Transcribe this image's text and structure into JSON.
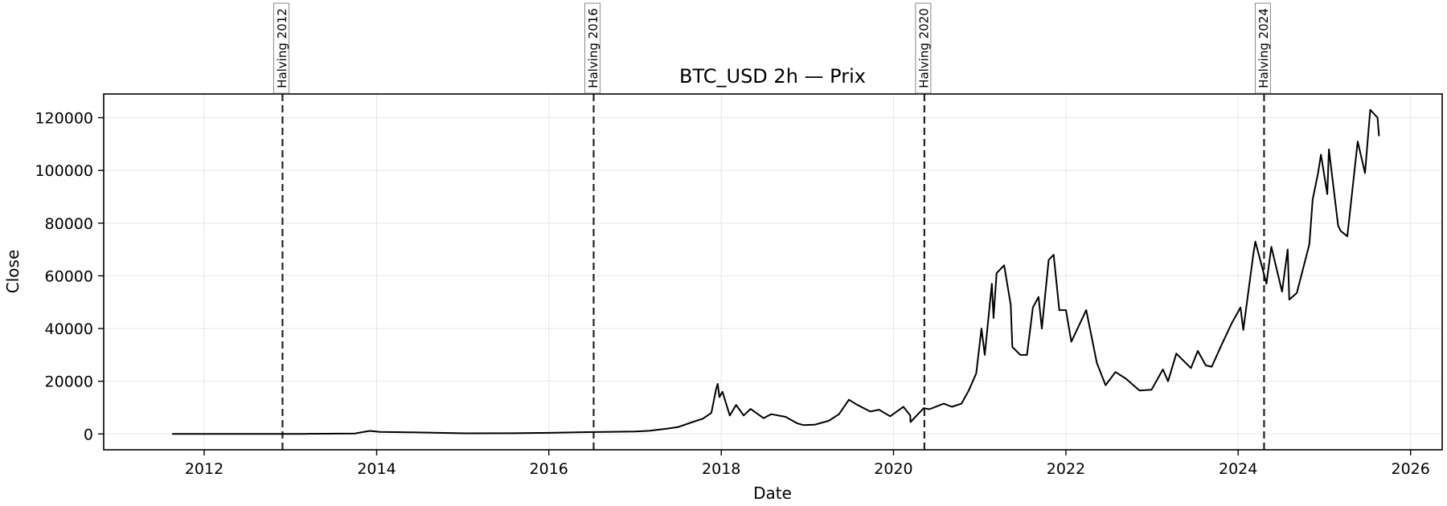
{
  "chart_data": {
    "type": "line",
    "title": "BTC_USD 2h — Prix",
    "xlabel": "Date",
    "ylabel": "Close",
    "xlim": [
      "2010-11-01",
      "2026-05-15"
    ],
    "ylim": [
      -6000,
      129000
    ],
    "x_ticks": [
      "2012",
      "2014",
      "2016",
      "2018",
      "2020",
      "2022",
      "2024",
      "2026"
    ],
    "y_ticks": [
      0,
      20000,
      40000,
      60000,
      80000,
      100000,
      120000
    ],
    "grid": true,
    "line_color": "#000000",
    "series": [
      {
        "x": [
          "2011-08-18",
          "2012-06-01",
          "2013-03-01",
          "2013-10-01",
          "2013-11-15",
          "2013-12-04",
          "2014-01-15",
          "2014-06-01",
          "2015-01-15",
          "2015-08-01",
          "2016-01-01",
          "2016-06-15",
          "2017-01-01",
          "2017-03-01",
          "2017-05-15",
          "2017-07-01",
          "2017-09-01",
          "2017-10-15",
          "2017-11-20",
          "2017-12-10",
          "2017-12-17",
          "2017-12-24",
          "2018-01-06",
          "2018-02-06",
          "2018-03-05",
          "2018-04-06",
          "2018-05-05",
          "2018-06-29",
          "2018-08-01",
          "2018-10-01",
          "2018-11-20",
          "2018-12-15",
          "2019-02-01",
          "2019-04-02",
          "2019-05-15",
          "2019-06-26",
          "2019-08-01",
          "2019-09-25",
          "2019-11-01",
          "2019-12-18",
          "2020-02-12",
          "2020-03-12",
          "2020-03-13",
          "2020-05-08",
          "2020-06-01",
          "2020-08-01",
          "2020-09-05",
          "2020-10-15",
          "2020-11-15",
          "2020-12-17",
          "2021-01-08",
          "2021-01-22",
          "2021-02-21",
          "2021-02-28",
          "2021-03-13",
          "2021-04-14",
          "2021-05-12",
          "2021-05-19",
          "2021-06-22",
          "2021-07-20",
          "2021-08-14",
          "2021-09-07",
          "2021-09-21",
          "2021-10-20",
          "2021-11-10",
          "2021-12-04",
          "2022-01-01",
          "2022-01-24",
          "2022-03-28",
          "2022-05-12",
          "2022-06-18",
          "2022-07-30",
          "2022-09-12",
          "2022-11-09",
          "2022-12-30",
          "2023-02-16",
          "2023-03-10",
          "2023-04-14",
          "2023-06-15",
          "2023-07-14",
          "2023-08-17",
          "2023-09-11",
          "2023-10-24",
          "2023-12-05",
          "2024-01-11",
          "2024-01-23",
          "2024-03-05",
          "2024-03-14",
          "2024-04-30",
          "2024-05-21",
          "2024-07-05",
          "2024-07-29",
          "2024-08-05",
          "2024-09-06",
          "2024-10-29",
          "2024-11-12",
          "2024-12-05",
          "2024-12-17",
          "2025-01-13",
          "2025-01-20",
          "2025-02-28",
          "2025-03-11",
          "2025-04-08",
          "2025-05-22",
          "2025-06-22",
          "2025-07-14",
          "2025-08-14",
          "2025-08-20"
        ],
        "values": [
          10,
          5,
          40,
          200,
          900,
          1150,
          800,
          600,
          250,
          280,
          430,
          700,
          950,
          1200,
          2000,
          2600,
          4500,
          5800,
          8000,
          17000,
          19000,
          14000,
          16000,
          7000,
          11000,
          7000,
          9500,
          6000,
          7500,
          6500,
          4000,
          3400,
          3500,
          5000,
          7500,
          13000,
          11000,
          8500,
          9200,
          6700,
          10300,
          7000,
          4500,
          9800,
          9400,
          11500,
          10300,
          11500,
          16500,
          23000,
          40000,
          30000,
          57000,
          44000,
          61000,
          64000,
          49000,
          33000,
          30000,
          30000,
          48000,
          52000,
          40000,
          66000,
          68000,
          47000,
          47000,
          35000,
          47000,
          27000,
          18500,
          23500,
          21000,
          16500,
          16800,
          24500,
          20000,
          30500,
          25000,
          31500,
          26000,
          25500,
          34000,
          42000,
          48000,
          39500,
          68000,
          73000,
          57000,
          71000,
          54000,
          70000,
          51000,
          53500,
          72000,
          89000,
          99000,
          106000,
          91000,
          108000,
          79000,
          77000,
          75000,
          111000,
          99000,
          123000,
          120000,
          113000
        ]
      }
    ],
    "annotations": [
      {
        "label": "Halving 2012",
        "x": "2012-11-28"
      },
      {
        "label": "Halving 2016",
        "x": "2016-07-09"
      },
      {
        "label": "Halving 2020",
        "x": "2020-05-11"
      },
      {
        "label": "Halving 2024",
        "x": "2024-04-20"
      }
    ]
  }
}
